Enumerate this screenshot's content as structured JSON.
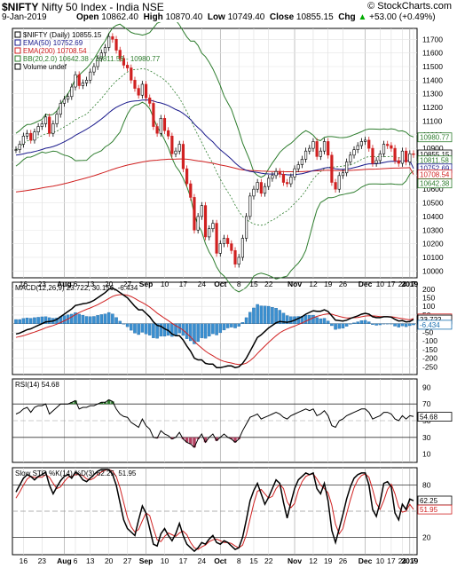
{
  "header": {
    "symbol": "$NIFTY",
    "name": "Nifty 50 Index - India  NSE",
    "watermark": "© StockCharts.com",
    "date": "9-Jan-2019",
    "open_label": "Open",
    "open": "10862.40",
    "high_label": "High",
    "high": "10870.40",
    "low_label": "Low",
    "low": "10749.40",
    "close_label": "Close",
    "close": "10855.15",
    "chg_label": "Chg",
    "chg": "+53.00 (+0.49%)",
    "chg_arrow": "▲",
    "colors": {
      "up": "#00aa00"
    }
  },
  "chart_data": [
    {
      "type": "candlestick",
      "panel": "price",
      "legend": [
        {
          "label": "$NIFTY (Daily) 10855.15",
          "color": "#000000"
        },
        {
          "label": "EMA(50) 10752.69",
          "color": "#1a1a8c"
        },
        {
          "label": "EMA(200) 10708.54",
          "color": "#d02020"
        },
        {
          "label": "BB(20,2.0) 10642.38 - 10811.58 - 10980.77",
          "color": "#2e7d2e"
        },
        {
          "label": "Volume undef",
          "color": "#000000"
        }
      ],
      "y_ticks": [
        "10000",
        "10100",
        "10200",
        "10300",
        "10400",
        "10500",
        "10600",
        "10700",
        "10800",
        "10900",
        "11000",
        "11100",
        "11200",
        "11300",
        "11400",
        "11500",
        "11600",
        "11700"
      ],
      "ylim": [
        9950,
        11780
      ],
      "badges": [
        {
          "label": "10980.77",
          "value": 10980.77,
          "bg": "#ffffff",
          "fg": "#2e7d2e"
        },
        {
          "label": "10855.15",
          "value": 10855.15,
          "bg": "#ffffff",
          "fg": "#000000"
        },
        {
          "label": "10811.58",
          "value": 10811.58,
          "bg": "#ffffff",
          "fg": "#2e7d2e"
        },
        {
          "label": "10752.69",
          "value": 10752.69,
          "bg": "#ffffff",
          "fg": "#1a1a8c"
        },
        {
          "label": "10708.54",
          "value": 10708.54,
          "bg": "#ffffff",
          "fg": "#d02020"
        },
        {
          "label": "10642.38",
          "value": 10642.38,
          "bg": "#ffffff",
          "fg": "#2e7d2e"
        }
      ],
      "close": [
        10890,
        10930,
        10990,
        11010,
        10960,
        11020,
        11060,
        11080,
        11130,
        11010,
        11080,
        11150,
        11230,
        11260,
        11280,
        11350,
        11440,
        11360,
        11380,
        11400,
        11460,
        11500,
        11560,
        11600,
        11640,
        11720,
        11700,
        11620,
        11560,
        11510,
        11490,
        11400,
        11340,
        11290,
        11370,
        11270,
        11230,
        11060,
        11010,
        11120,
        11030,
        10990,
        10860,
        10880,
        10930,
        10750,
        10640,
        10540,
        10300,
        10400,
        10480,
        10250,
        10310,
        10350,
        10130,
        10200,
        10240,
        10200,
        10150,
        10050,
        10100,
        10240,
        10400,
        10550,
        10600,
        10650,
        10570,
        10620,
        10680,
        10700,
        10730,
        10710,
        10650,
        10640,
        10690,
        10750,
        10780,
        10820,
        10880,
        10900,
        10950,
        10840,
        10880,
        10950,
        10850,
        10650,
        10600,
        10700,
        10720,
        10800,
        10850,
        10890,
        10920,
        10950,
        10960,
        10900,
        10790,
        10810,
        10860,
        10930,
        10920,
        10900,
        10810,
        10790,
        10880,
        10800,
        10860,
        10855
      ],
      "ema50": [
        10850,
        10853,
        10859,
        10866,
        10870,
        10876,
        10883,
        10891,
        10901,
        10906,
        10913,
        10923,
        10935,
        10948,
        10962,
        10977,
        10996,
        11010,
        11025,
        11040,
        11057,
        11075,
        11095,
        11115,
        11137,
        11161,
        11183,
        11201,
        11215,
        11227,
        11238,
        11244,
        11248,
        11249,
        11254,
        11255,
        11254,
        11247,
        11238,
        11233,
        11224,
        11214,
        11199,
        11185,
        11174,
        11156,
        11135,
        11111,
        11078,
        11051,
        11028,
        10996,
        10970,
        10947,
        10916,
        10890,
        10867,
        10844,
        10820,
        10793,
        10769,
        10751,
        10738,
        10731,
        10727,
        10724,
        10718,
        10714,
        10712,
        10711,
        10712,
        10712,
        10709,
        10706,
        10705,
        10707,
        10710,
        10714,
        10721,
        10728,
        10737,
        10741,
        10747,
        10755,
        10759,
        10755,
        10749,
        10747,
        10746,
        10748,
        10752,
        10758,
        10765,
        10773,
        10781,
        10786,
        10786,
        10787,
        10790,
        10796,
        10801,
        10805,
        10805,
        10805,
        10808,
        10808,
        10810,
        10752
      ],
      "ema200": [
        10580,
        10583,
        10587,
        10591,
        10595,
        10599,
        10604,
        10609,
        10614,
        10618,
        10623,
        10628,
        10634,
        10640,
        10647,
        10654,
        10662,
        10669,
        10676,
        10683,
        10691,
        10699,
        10708,
        10717,
        10726,
        10736,
        10745,
        10754,
        10762,
        10770,
        10777,
        10783,
        10789,
        10794,
        10800,
        10804,
        10809,
        10811,
        10813,
        10816,
        10818,
        10820,
        10820,
        10821,
        10822,
        10822,
        10820,
        10817,
        10812,
        10808,
        10805,
        10800,
        10795,
        10791,
        10784,
        10778,
        10773,
        10767,
        10761,
        10754,
        10747,
        10742,
        10739,
        10737,
        10736,
        10735,
        10733,
        10732,
        10731,
        10730,
        10730,
        10730,
        10729,
        10728,
        10728,
        10728,
        10729,
        10729,
        10731,
        10732,
        10734,
        10735,
        10736,
        10738,
        10739,
        10738,
        10737,
        10736,
        10736,
        10737,
        10738,
        10739,
        10741,
        10743,
        10745,
        10747,
        10747,
        10748,
        10749,
        10751,
        10753,
        10754,
        10755,
        10755,
        10757,
        10757,
        10758,
        10708
      ]
    },
    {
      "type": "line+histogram",
      "panel": "macd",
      "legend": [
        {
          "label": "MACD(12,26,9) 23.722, 30.156, -6.434",
          "color": "#000000"
        }
      ],
      "y_ticks": [
        "200",
        "150",
        "100",
        "50",
        "0",
        "-50",
        "-100",
        "-150",
        "-200",
        "-250"
      ],
      "ylim": [
        -295,
        240
      ],
      "badges": [
        {
          "label": "30.156",
          "value": 30.156,
          "bg": "#ffffff",
          "fg": "#d02020"
        },
        {
          "label": "23.722",
          "value": 23.722,
          "bg": "#ffffff",
          "fg": "#000000"
        },
        {
          "label": "-6.434",
          "value": -6.434,
          "bg": "#ffffff",
          "fg": "#1a6fb0"
        }
      ],
      "macd": [
        -60,
        -55,
        -45,
        -35,
        -30,
        -20,
        -10,
        0,
        10,
        12,
        15,
        25,
        40,
        55,
        70,
        85,
        105,
        110,
        115,
        118,
        125,
        135,
        150,
        165,
        180,
        200,
        205,
        195,
        180,
        165,
        150,
        125,
        100,
        80,
        80,
        60,
        40,
        10,
        -10,
        -15,
        -30,
        -40,
        -60,
        -70,
        -70,
        -95,
        -130,
        -160,
        -200,
        -210,
        -210,
        -230,
        -235,
        -235,
        -255,
        -255,
        -250,
        -245,
        -245,
        -255,
        -250,
        -230,
        -200,
        -160,
        -120,
        -80,
        -65,
        -45,
        -25,
        -10,
        5,
        12,
        10,
        8,
        12,
        20,
        30,
        40,
        55,
        65,
        75,
        72,
        72,
        80,
        70,
        45,
        20,
        18,
        15,
        20,
        30,
        38,
        45,
        55,
        60,
        55,
        40,
        35,
        35,
        40,
        40,
        38,
        25,
        15,
        18,
        10,
        12,
        24
      ],
      "signal": [
        -80,
        -75,
        -70,
        -63,
        -56,
        -49,
        -41,
        -33,
        -24,
        -17,
        -11,
        -3,
        6,
        16,
        27,
        39,
        52,
        64,
        74,
        83,
        91,
        100,
        110,
        121,
        133,
        146,
        158,
        165,
        168,
        168,
        165,
        157,
        146,
        133,
        122,
        110,
        96,
        79,
        61,
        46,
        31,
        17,
        2,
        -12,
        -24,
        -38,
        -57,
        -77,
        -102,
        -123,
        -141,
        -159,
        -174,
        -186,
        -200,
        -211,
        -219,
        -224,
        -228,
        -234,
        -237,
        -236,
        -229,
        -215,
        -196,
        -173,
        -151,
        -130,
        -109,
        -89,
        -70,
        -53,
        -41,
        -31,
        -22,
        -14,
        -5,
        4,
        14,
        24,
        34,
        42,
        48,
        54,
        57,
        55,
        48,
        42,
        37,
        33,
        33,
        34,
        36,
        40,
        44,
        46,
        45,
        43,
        41,
        41,
        41,
        40,
        37,
        32,
        29,
        25,
        22,
        30
      ]
    },
    {
      "type": "line",
      "panel": "rsi",
      "legend": [
        {
          "label": "RSI(14) 54.68",
          "color": "#000000"
        }
      ],
      "y_ticks": [
        "90",
        "70",
        "50",
        "30",
        "10"
      ],
      "ylim": [
        0,
        100
      ],
      "levels": [
        70,
        30
      ],
      "badges": [
        {
          "label": "54.68",
          "value": 54.68,
          "bg": "#ffffff",
          "fg": "#000000"
        }
      ],
      "values": [
        58,
        60,
        64,
        66,
        60,
        66,
        68,
        68,
        70,
        58,
        62,
        66,
        70,
        70,
        70,
        72,
        74,
        64,
        66,
        66,
        68,
        68,
        70,
        72,
        72,
        75,
        73,
        64,
        58,
        55,
        54,
        48,
        45,
        42,
        52,
        44,
        40,
        30,
        29,
        38,
        34,
        32,
        28,
        30,
        36,
        28,
        24,
        22,
        18,
        28,
        34,
        24,
        30,
        34,
        26,
        30,
        34,
        30,
        28,
        24,
        28,
        38,
        46,
        54,
        56,
        58,
        52,
        54,
        56,
        58,
        60,
        58,
        54,
        52,
        56,
        58,
        60,
        62,
        64,
        62,
        64,
        56,
        58,
        62,
        56,
        44,
        42,
        50,
        52,
        56,
        58,
        60,
        62,
        64,
        64,
        60,
        52,
        54,
        56,
        60,
        60,
        58,
        52,
        50,
        56,
        52,
        56,
        55
      ]
    },
    {
      "type": "line",
      "panel": "stochastic",
      "legend": [
        {
          "label": "Slow STO %K(14) %D(3) 62.25, 51.95",
          "color": "#000000"
        }
      ],
      "y_ticks": [
        "80",
        "50",
        "20"
      ],
      "ylim": [
        0,
        100
      ],
      "levels": [
        80,
        50,
        20
      ],
      "badges": [
        {
          "label": "62.25",
          "value": 62.25,
          "bg": "#ffffff",
          "fg": "#000000"
        },
        {
          "label": "51.95",
          "value": 51.95,
          "bg": "#ffffff",
          "fg": "#d02020"
        }
      ],
      "k": [
        72,
        80,
        88,
        92,
        90,
        86,
        90,
        92,
        95,
        80,
        70,
        78,
        85,
        90,
        92,
        88,
        95,
        92,
        86,
        84,
        88,
        92,
        96,
        98,
        98,
        98,
        92,
        80,
        60,
        40,
        30,
        26,
        22,
        40,
        56,
        48,
        30,
        12,
        10,
        24,
        30,
        22,
        16,
        24,
        36,
        22,
        12,
        8,
        4,
        8,
        14,
        12,
        18,
        22,
        14,
        12,
        16,
        14,
        10,
        6,
        8,
        20,
        40,
        62,
        74,
        82,
        70,
        58,
        66,
        76,
        86,
        82,
        60,
        42,
        60,
        76,
        86,
        90,
        94,
        92,
        94,
        76,
        70,
        82,
        62,
        28,
        14,
        30,
        46,
        64,
        78,
        88,
        92,
        94,
        94,
        80,
        52,
        44,
        60,
        82,
        84,
        78,
        48,
        40,
        58,
        52,
        64,
        62
      ],
      "d": [
        65,
        72,
        80,
        87,
        90,
        89,
        89,
        89,
        92,
        89,
        82,
        76,
        78,
        84,
        89,
        90,
        92,
        92,
        91,
        87,
        86,
        88,
        92,
        95,
        97,
        98,
        96,
        90,
        77,
        60,
        43,
        32,
        26,
        29,
        39,
        48,
        45,
        30,
        17,
        15,
        21,
        25,
        23,
        21,
        25,
        27,
        23,
        14,
        8,
        6,
        9,
        11,
        15,
        17,
        18,
        16,
        14,
        14,
        13,
        10,
        8,
        11,
        23,
        41,
        59,
        73,
        75,
        70,
        65,
        67,
        76,
        81,
        76,
        61,
        54,
        59,
        74,
        84,
        90,
        92,
        93,
        87,
        80,
        76,
        71,
        57,
        35,
        24,
        30,
        47,
        63,
        77,
        86,
        91,
        93,
        89,
        75,
        59,
        52,
        62,
        75,
        81,
        70,
        55,
        49,
        50,
        58,
        52
      ]
    }
  ],
  "x_axis": {
    "ticks": [
      {
        "label": "16",
        "i": 2,
        "bold": false
      },
      {
        "label": "23",
        "i": 7,
        "bold": false
      },
      {
        "label": "Aug",
        "i": 13,
        "bold": true
      },
      {
        "label": "6",
        "i": 16,
        "bold": false
      },
      {
        "label": "13",
        "i": 20,
        "bold": false
      },
      {
        "label": "20",
        "i": 25,
        "bold": false
      },
      {
        "label": "27",
        "i": 30,
        "bold": false
      },
      {
        "label": "Sep",
        "i": 35,
        "bold": true
      },
      {
        "label": "10",
        "i": 40,
        "bold": false
      },
      {
        "label": "17",
        "i": 45,
        "bold": false
      },
      {
        "label": "24",
        "i": 50,
        "bold": false
      },
      {
        "label": "Oct",
        "i": 55,
        "bold": true
      },
      {
        "label": "8",
        "i": 60,
        "bold": false
      },
      {
        "label": "15",
        "i": 64,
        "bold": false
      },
      {
        "label": "22",
        "i": 68,
        "bold": false
      },
      {
        "label": "Nov",
        "i": 75,
        "bold": true
      },
      {
        "label": "12",
        "i": 80,
        "bold": false
      },
      {
        "label": "19",
        "i": 84,
        "bold": false
      },
      {
        "label": "26",
        "i": 88,
        "bold": false
      },
      {
        "label": "Dec",
        "i": 94,
        "bold": true
      },
      {
        "label": "10",
        "i": 98,
        "bold": false
      },
      {
        "label": "17",
        "i": 101,
        "bold": false
      },
      {
        "label": "24",
        "i": 104,
        "bold": false
      },
      {
        "label": "2019",
        "i": 106,
        "bold": true
      },
      {
        "label": "7",
        "i": 107,
        "bold": false
      }
    ]
  }
}
